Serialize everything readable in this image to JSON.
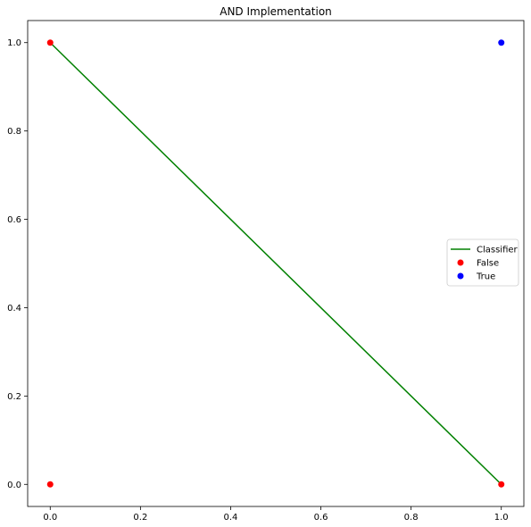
{
  "chart_data": {
    "type": "scatter",
    "title": "AND Implementation",
    "xlabel": "",
    "ylabel": "",
    "xlim": [
      -0.05,
      1.05
    ],
    "ylim": [
      -0.05,
      1.05
    ],
    "grid": false,
    "legend_position": "center-right",
    "x_ticks": [
      0.0,
      0.2,
      0.4,
      0.6,
      0.8,
      1.0
    ],
    "x_tick_labels": [
      "0.0",
      "0.2",
      "0.4",
      "0.6",
      "0.8",
      "1.0"
    ],
    "y_ticks": [
      0.0,
      0.2,
      0.4,
      0.6,
      0.8,
      1.0
    ],
    "y_tick_labels": [
      "0.0",
      "0.2",
      "0.4",
      "0.6",
      "0.8",
      "1.0"
    ],
    "series": [
      {
        "name": "Classifier",
        "kind": "line",
        "color": "#008000",
        "x": [
          0,
          1
        ],
        "y": [
          1,
          0
        ]
      },
      {
        "name": "False",
        "kind": "points",
        "color": "#ff0000",
        "x": [
          0,
          0,
          1
        ],
        "y": [
          0,
          1,
          0
        ]
      },
      {
        "name": "True",
        "kind": "points",
        "color": "#0000ff",
        "x": [
          1
        ],
        "y": [
          1
        ]
      }
    ]
  }
}
